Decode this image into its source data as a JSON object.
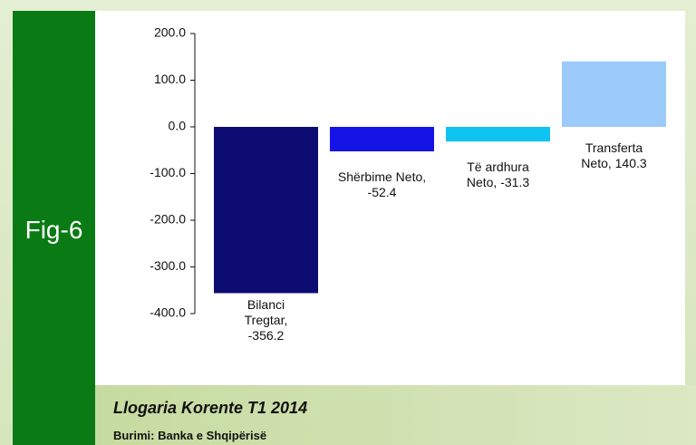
{
  "chart_data": {
    "type": "bar",
    "fig_label": "Fig-6",
    "title": "Llogaria Korente T1 2014",
    "source": "Burimi: Banka e Shqipërisë",
    "values": [
      -356.2,
      -52.4,
      -31.3,
      140.3
    ],
    "value_labels": [
      "Bilanci Tregtar, -356.2",
      "Shërbime Neto, -52.4",
      "Të ardhura Neto, -31.3",
      "Transferta Neto, 140.3"
    ],
    "colors": [
      "#0c0c72",
      "#1414e6",
      "#10c4f2",
      "#9ccbfa"
    ],
    "ylim": [
      -400,
      200
    ],
    "yticks": [
      {
        "value": 200,
        "label": "200.0"
      },
      {
        "value": 100,
        "label": "100.0"
      },
      {
        "value": 0,
        "label": "0.0"
      },
      {
        "value": -100,
        "label": "-100.0"
      },
      {
        "value": -200,
        "label": "-200.0"
      },
      {
        "value": -300,
        "label": "-300.0"
      },
      {
        "value": -400,
        "label": "-400.0"
      }
    ]
  }
}
